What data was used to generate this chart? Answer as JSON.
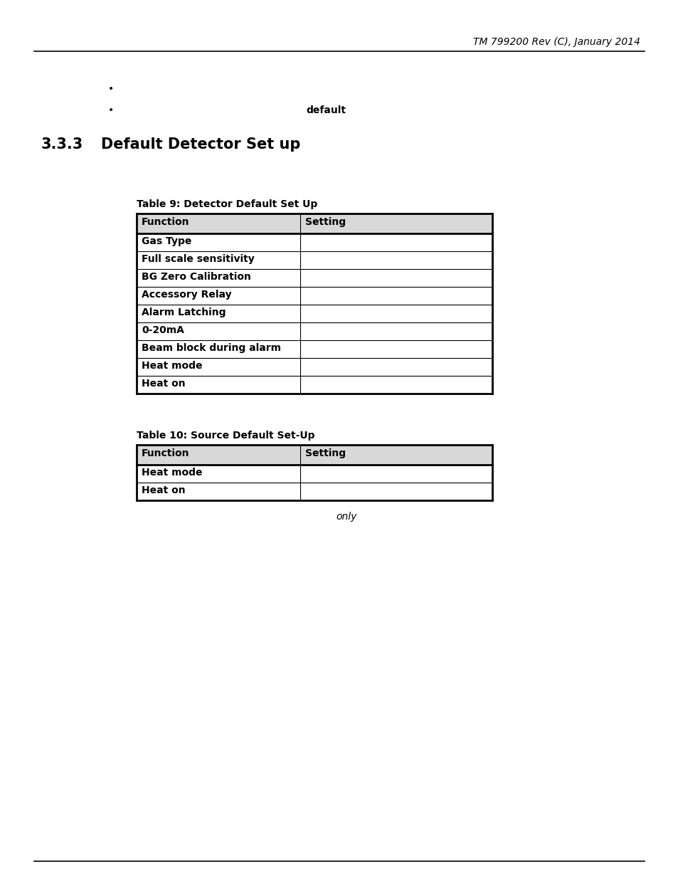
{
  "header_text": "TM 799200 Rev (C), January 2014",
  "bullet2": "default",
  "section_number": "3.3.3",
  "section_title": "Default Detector Set up",
  "table9_title": "Table 9: Detector Default Set Up",
  "table9_headers": [
    "Function",
    "Setting"
  ],
  "table9_rows": [
    [
      "Gas Type",
      ""
    ],
    [
      "Full scale sensitivity",
      ""
    ],
    [
      "BG Zero Calibration",
      ""
    ],
    [
      "Accessory Relay",
      ""
    ],
    [
      "Alarm Latching",
      ""
    ],
    [
      "0-20mA",
      ""
    ],
    [
      "Beam block during alarm",
      ""
    ],
    [
      "Heat mode",
      ""
    ],
    [
      "Heat on",
      ""
    ]
  ],
  "table10_title": "Table 10: Source Default Set-Up",
  "table10_headers": [
    "Function",
    "Setting"
  ],
  "table10_rows": [
    [
      "Heat mode",
      ""
    ],
    [
      "Heat on",
      ""
    ]
  ],
  "table10_footnote": "only",
  "bg_color": "#ffffff",
  "header_gray": "#d8d8d8",
  "line_color": "#000000"
}
